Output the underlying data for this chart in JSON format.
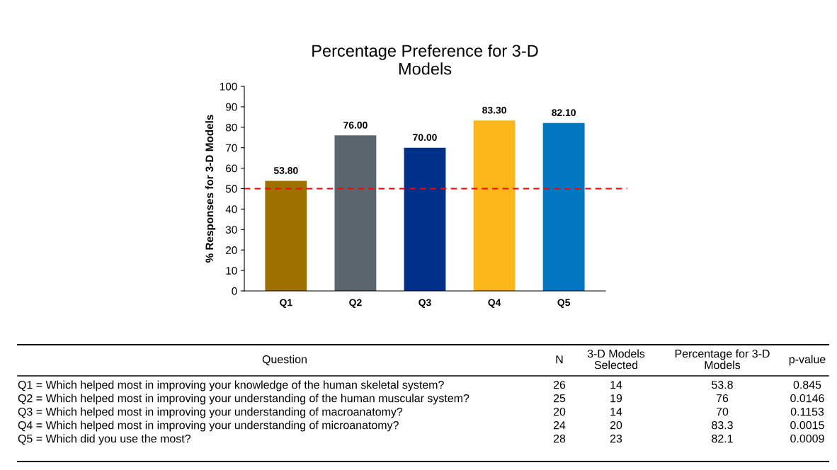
{
  "chart_data": {
    "type": "bar",
    "title": "Percentage Preference for 3-D\nModels",
    "ylabel": "% Responses for 3-D Models",
    "categories": [
      "Q1",
      "Q2",
      "Q3",
      "Q4",
      "Q5"
    ],
    "values": [
      53.8,
      76,
      70,
      83.3,
      82.1
    ],
    "colors": [
      "#9c7100",
      "#5a656e",
      "#003087",
      "#fdb71a",
      "#0077c0"
    ],
    "value_labels": [
      "53.80",
      "76.00",
      "70.00",
      "83.30",
      "82.10"
    ],
    "ylim": [
      0,
      100
    ],
    "yticks": [
      0,
      10,
      20,
      30,
      40,
      50,
      60,
      70,
      80,
      90,
      100
    ],
    "grid": false,
    "legend": false,
    "ref_lines": [
      {
        "axis": "y",
        "value": 50,
        "color": "#ff0000",
        "line_style": "dashed"
      }
    ],
    "annotations": [
      "Question",
      "N",
      "3-D Models\nSelected",
      "Percentage for 3-D\nModels",
      "p-value",
      "Q1 = Which helped most in improving your knowledge of the human skeletal system?",
      "26",
      "14",
      "53.8",
      "0.845",
      "Q2 = Which helped most in improving your understanding of the human muscular system?",
      "25",
      "19",
      "76",
      "0.0146",
      "Q3 = Which helped most in improving your understanding of macroanatomy?",
      "20",
      "14",
      "70",
      "0.1153",
      "Q4 = Which helped most in improving your understanding of microanatomy?",
      "24",
      "20",
      "83.3",
      "0.0015",
      "Q5 = Which did you use the most?",
      "28",
      "23",
      "82.1",
      "0.0009"
    ]
  }
}
